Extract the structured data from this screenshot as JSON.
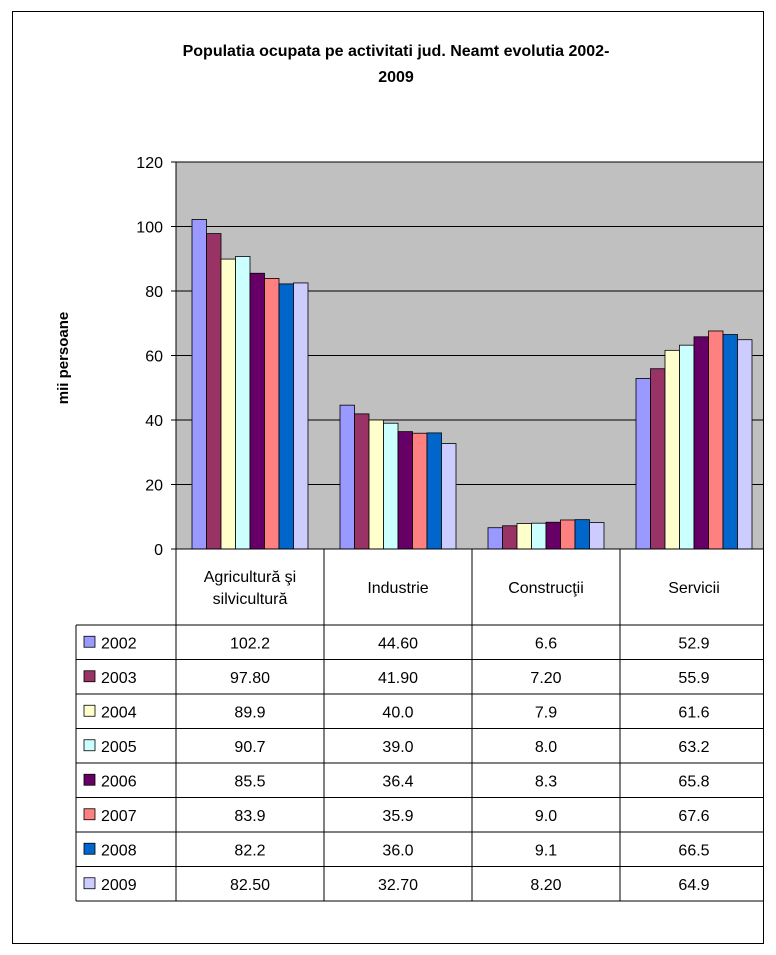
{
  "chart_data": {
    "type": "bar",
    "title_lines": [
      "Populatia ocupata pe activitati jud. Neamt evolutia 2002-",
      "2009"
    ],
    "ylabel": "mii persoane",
    "ylim": [
      0,
      120
    ],
    "yticks": [
      0,
      20,
      40,
      60,
      80,
      100,
      120
    ],
    "grid": true,
    "legend": "data-table",
    "categories": [
      "Agricultură şi silvicultură",
      "Industrie",
      "Construcţii",
      "Servicii"
    ],
    "category_lines": [
      [
        "Agricultură şi",
        "silvicultură"
      ],
      [
        "Industrie"
      ],
      [
        "Construcţii"
      ],
      [
        "Servicii"
      ]
    ],
    "series": [
      {
        "name": "2002",
        "color": "#9999FF",
        "values": [
          102.2,
          44.6,
          6.6,
          52.9
        ],
        "labels": [
          "102.2",
          "44.60",
          "6.6",
          "52.9"
        ]
      },
      {
        "name": "2003",
        "color": "#993366",
        "values": [
          97.8,
          41.9,
          7.2,
          55.9
        ],
        "labels": [
          "97.80",
          "41.90",
          "7.20",
          "55.9"
        ]
      },
      {
        "name": "2004",
        "color": "#FFFFCC",
        "values": [
          89.9,
          40.0,
          7.9,
          61.6
        ],
        "labels": [
          "89.9",
          "40.0",
          "7.9",
          "61.6"
        ]
      },
      {
        "name": "2005",
        "color": "#CCFFFF",
        "values": [
          90.7,
          39.0,
          8.0,
          63.2
        ],
        "labels": [
          "90.7",
          "39.0",
          "8.0",
          "63.2"
        ]
      },
      {
        "name": "2006",
        "color": "#660066",
        "values": [
          85.5,
          36.4,
          8.3,
          65.8
        ],
        "labels": [
          "85.5",
          "36.4",
          "8.3",
          "65.8"
        ]
      },
      {
        "name": "2007",
        "color": "#FF8080",
        "values": [
          83.9,
          35.9,
          9.0,
          67.6
        ],
        "labels": [
          "83.9",
          "35.9",
          "9.0",
          "67.6"
        ]
      },
      {
        "name": "2008",
        "color": "#0066CC",
        "values": [
          82.2,
          36.0,
          9.1,
          66.5
        ],
        "labels": [
          "82.2",
          "36.0",
          "9.1",
          "66.5"
        ]
      },
      {
        "name": "2009",
        "color": "#CCCCFF",
        "values": [
          82.5,
          32.7,
          8.2,
          64.9
        ],
        "labels": [
          "82.50",
          "32.70",
          "8.20",
          "64.9"
        ]
      }
    ],
    "colors": {
      "plot_background": "#C0C0C0",
      "gridline": "#000000"
    }
  }
}
